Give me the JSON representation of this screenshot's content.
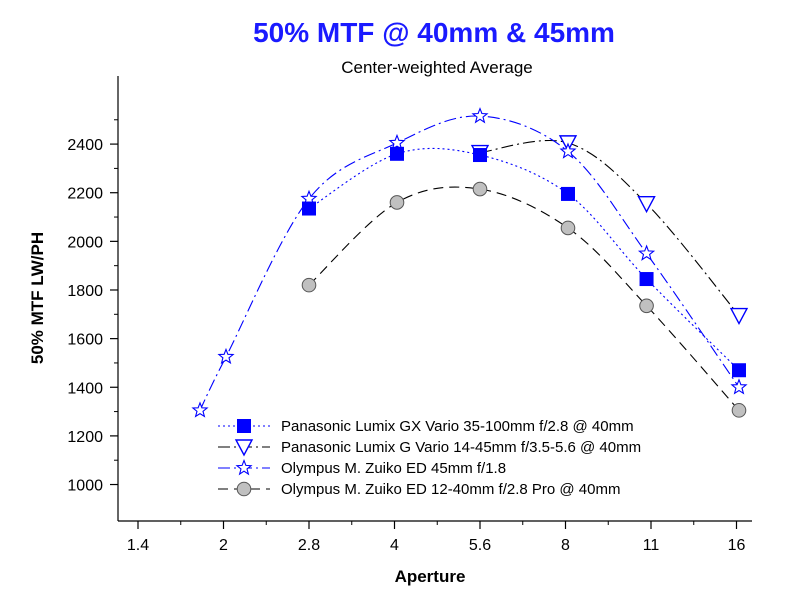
{
  "chart_data": {
    "type": "line",
    "title": "50% MTF @ 40mm & 45mm",
    "subtitle": "Center-weighted Average",
    "xlabel": "Aperture",
    "ylabel": "50% MTF  LW/PH",
    "x_scale": "log2 (f-stops)",
    "x_ticks": [
      "1.4",
      "2",
      "2.8",
      "4",
      "5.6",
      "8",
      "11",
      "16"
    ],
    "y_ticks": [
      1000,
      1200,
      1400,
      1600,
      1800,
      2000,
      2200,
      2400
    ],
    "ylim": [
      850,
      2680
    ],
    "grid": false,
    "legend_position": "bottom-center",
    "title_color": "#1a1aff",
    "series": [
      {
        "name": "Panasonic Lumix GX Vario 35-100mm f/2.8 @ 40mm",
        "color": "#0000ff",
        "marker": "square-filled",
        "line": "dotted",
        "points": [
          {
            "x": "2.8",
            "y": 2135
          },
          {
            "x": "4",
            "y": 2360
          },
          {
            "x": "5.6",
            "y": 2355
          },
          {
            "x": "8",
            "y": 2195
          },
          {
            "x": "11",
            "y": 1845
          },
          {
            "x": "16",
            "y": 1470
          }
        ]
      },
      {
        "name": "Panasonic Lumix G Vario 14-45mm f/3.5-5.6 @ 40mm",
        "color": "#0000ff",
        "line_color": "#000000",
        "marker": "triangle-down-open",
        "line": "dash-dot",
        "points": [
          {
            "x": "5.6",
            "y": 2365
          },
          {
            "x": "8",
            "y": 2405
          },
          {
            "x": "11",
            "y": 2155
          },
          {
            "x": "16",
            "y": 1695
          }
        ]
      },
      {
        "name": "Olympus M. Zuiko ED 45mm f/1.8",
        "color": "#0000ff",
        "marker": "star-open",
        "line": "dash-dot",
        "points": [
          {
            "x": "1.8",
            "y": 1305
          },
          {
            "x": "2",
            "y": 1525
          },
          {
            "x": "2.8",
            "y": 2175
          },
          {
            "x": "4",
            "y": 2405
          },
          {
            "x": "5.6",
            "y": 2515
          },
          {
            "x": "8",
            "y": 2370
          },
          {
            "x": "11",
            "y": 1950
          },
          {
            "x": "16",
            "y": 1400
          }
        ]
      },
      {
        "name": "Olympus M. Zuiko ED 12-40mm f/2.8 Pro @ 40mm",
        "color": "#c0c0c0",
        "line_color": "#000000",
        "marker": "circle-gray",
        "line": "dashed",
        "points": [
          {
            "x": "2.8",
            "y": 1820
          },
          {
            "x": "4",
            "y": 2160
          },
          {
            "x": "5.6",
            "y": 2215
          },
          {
            "x": "8",
            "y": 2055
          },
          {
            "x": "11",
            "y": 1735
          },
          {
            "x": "16",
            "y": 1305
          }
        ]
      }
    ]
  }
}
